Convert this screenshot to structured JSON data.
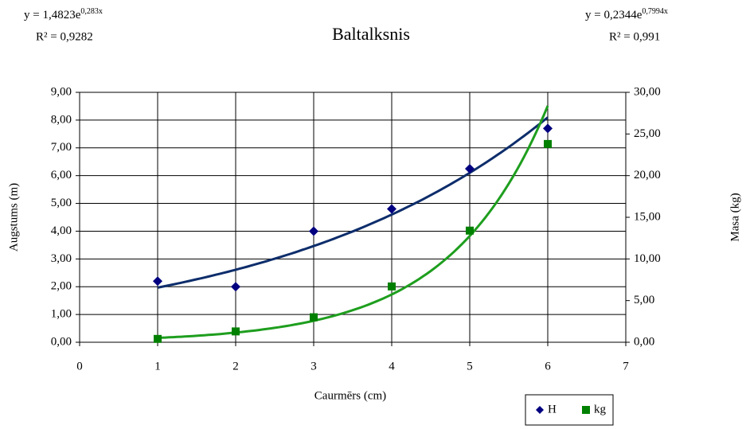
{
  "chart_data": {
    "type": "scatter",
    "title": "Baltalksnis",
    "x_label": "Caurmērs (cm)",
    "y_label": "Augstums (m)",
    "y2_label": "Masa (kg)",
    "x": [
      1,
      2,
      3,
      4,
      5,
      6
    ],
    "series": [
      {
        "name": "H",
        "color": "#000080",
        "marker": "diamond",
        "values": [
          2.2,
          2.0,
          4.0,
          4.8,
          6.25,
          7.7
        ],
        "trendline": {
          "type": "exponential",
          "color": "#0d2d6b",
          "a": 1.4823,
          "b": 0.283,
          "equation_label": "y = 1,4823e",
          "exponent_label": "0,283x",
          "r2_label": "R² = 0,9282"
        }
      },
      {
        "name": "kg",
        "color": "#008000",
        "marker": "square",
        "axis": "y2",
        "values": [
          0.4,
          1.3,
          3.0,
          6.7,
          13.4,
          23.8
        ],
        "trendline": {
          "type": "exponential",
          "color": "#1e9e1e",
          "a": 0.2344,
          "b": 0.7994,
          "equation_label": "y = 0,2344e",
          "exponent_label": "0,7994x",
          "r2_label": "R² = 0,991"
        }
      }
    ],
    "xlim": [
      0,
      7
    ],
    "xticks": [
      0,
      1,
      2,
      3,
      4,
      5,
      6,
      7
    ],
    "ylim": [
      0,
      9
    ],
    "yticks": [
      {
        "value": 0,
        "label": "0,00"
      },
      {
        "value": 1,
        "label": "1,00"
      },
      {
        "value": 2,
        "label": "2,00"
      },
      {
        "value": 3,
        "label": "3,00"
      },
      {
        "value": 4,
        "label": "4,00"
      },
      {
        "value": 5,
        "label": "5,00"
      },
      {
        "value": 6,
        "label": "6,00"
      },
      {
        "value": 7,
        "label": "7,00"
      },
      {
        "value": 8,
        "label": "8,00"
      },
      {
        "value": 9,
        "label": "9,00"
      }
    ],
    "y2lim": [
      0,
      30
    ],
    "y2ticks": [
      {
        "value": 0,
        "label": "0,00"
      },
      {
        "value": 5,
        "label": "5,00"
      },
      {
        "value": 10,
        "label": "10,00"
      },
      {
        "value": 15,
        "label": "15,00"
      },
      {
        "value": 20,
        "label": "20,00"
      },
      {
        "value": 25,
        "label": "25,00"
      },
      {
        "value": 30,
        "label": "30,00"
      }
    ],
    "grid": true,
    "legend": "lower right"
  }
}
